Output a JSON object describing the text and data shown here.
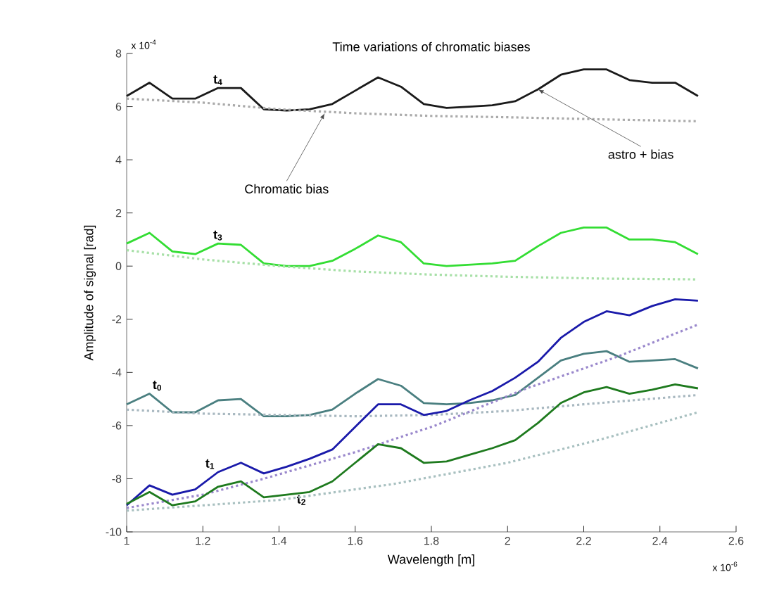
{
  "chart_data": {
    "type": "line",
    "title": "Time variations of  chromatic biases",
    "xlabel": "Wavelength [m]",
    "ylabel": "Amplitude of signal [rad]",
    "xlim": [
      1,
      2.6
    ],
    "xticks": [
      1,
      1.2,
      1.4,
      1.6,
      1.8,
      2,
      2.2,
      2.4,
      2.6
    ],
    "ylim": [
      -10,
      8
    ],
    "yticks": [
      -10,
      -8,
      -6,
      -4,
      -2,
      0,
      2,
      4,
      6,
      8
    ],
    "grid": false,
    "marker": "none",
    "line_style": "solid",
    "annotations": [
      {
        "text": "Chromatic bias",
        "x": 1.52,
        "y": 5.75
      },
      {
        "text": "astro + bias",
        "x": 2.08,
        "y": 6.65
      },
      "x 10$^{-4}$",
      "x 10$^{-6}$"
    ],
    "series": [
      {
        "name": "t$_{4}$",
        "color": "#1a1a1a",
        "x": [
          1.0,
          1.06,
          1.12,
          1.18,
          1.24,
          1.3,
          1.36,
          1.42,
          1.48,
          1.54,
          1.6,
          1.66,
          1.72,
          1.78,
          1.84,
          1.9,
          1.96,
          2.02,
          2.08,
          2.14,
          2.2,
          2.26,
          2.32,
          2.38,
          2.44,
          2.5
        ],
        "values": [
          6.4,
          6.9,
          6.3,
          6.3,
          6.7,
          6.7,
          5.9,
          5.85,
          5.9,
          6.1,
          6.6,
          7.1,
          6.75,
          6.1,
          5.95,
          6.0,
          6.05,
          6.2,
          6.65,
          7.2,
          7.4,
          7.4,
          7.0,
          6.9,
          6.9,
          6.4
        ]
      },
      {
        "color": "#aaaaaa",
        "line_style": "dotted",
        "x": [
          1.0,
          1.2,
          1.4,
          1.6,
          1.8,
          2.0,
          2.25,
          2.5
        ],
        "values": [
          6.3,
          6.15,
          5.9,
          5.75,
          5.65,
          5.6,
          5.52,
          5.45
        ]
      },
      {
        "name": "t$_{3}$",
        "color": "#33dd33",
        "x": [
          1.0,
          1.06,
          1.12,
          1.18,
          1.24,
          1.3,
          1.36,
          1.42,
          1.48,
          1.54,
          1.6,
          1.66,
          1.72,
          1.78,
          1.84,
          1.9,
          1.96,
          2.02,
          2.08,
          2.14,
          2.2,
          2.26,
          2.32,
          2.38,
          2.44,
          2.5
        ],
        "values": [
          0.85,
          1.25,
          0.55,
          0.45,
          0.85,
          0.8,
          0.1,
          0.0,
          0.0,
          0.2,
          0.65,
          1.15,
          0.9,
          0.1,
          0.0,
          0.05,
          0.1,
          0.2,
          0.75,
          1.25,
          1.45,
          1.45,
          1.0,
          1.0,
          0.9,
          0.45
        ]
      },
      {
        "color": "#a8e0a8",
        "line_style": "dotted",
        "x": [
          1.0,
          1.2,
          1.4,
          1.6,
          1.8,
          2.0,
          2.25,
          2.5
        ],
        "values": [
          0.6,
          0.25,
          0.0,
          -0.2,
          -0.32,
          -0.4,
          -0.47,
          -0.5
        ]
      },
      {
        "name": "t$_{0}$",
        "color": "#4a7f80",
        "x": [
          1.0,
          1.06,
          1.12,
          1.18,
          1.24,
          1.3,
          1.36,
          1.42,
          1.48,
          1.54,
          1.6,
          1.66,
          1.72,
          1.78,
          1.84,
          1.9,
          1.96,
          2.02,
          2.08,
          2.14,
          2.2,
          2.26,
          2.32,
          2.38,
          2.44,
          2.5
        ],
        "values": [
          -5.2,
          -4.8,
          -5.5,
          -5.5,
          -5.05,
          -5.0,
          -5.65,
          -5.65,
          -5.6,
          -5.4,
          -4.8,
          -4.25,
          -4.5,
          -5.15,
          -5.2,
          -5.15,
          -5.05,
          -4.85,
          -4.2,
          -3.55,
          -3.3,
          -3.2,
          -3.6,
          -3.55,
          -3.5,
          -3.85
        ]
      },
      {
        "color": "#a8b8c0",
        "line_style": "dotted",
        "x": [
          1.0,
          1.2,
          1.4,
          1.6,
          1.8,
          2.0,
          2.2,
          2.5
        ],
        "values": [
          -5.4,
          -5.55,
          -5.6,
          -5.65,
          -5.6,
          -5.45,
          -5.2,
          -4.85
        ]
      },
      {
        "name": "t$_{1}$",
        "color": "#1a1aaa",
        "x": [
          1.0,
          1.06,
          1.12,
          1.18,
          1.24,
          1.3,
          1.36,
          1.42,
          1.48,
          1.54,
          1.6,
          1.66,
          1.72,
          1.78,
          1.84,
          1.9,
          1.96,
          2.02,
          2.08,
          2.14,
          2.2,
          2.26,
          2.32,
          2.38,
          2.44,
          2.5
        ],
        "values": [
          -9.0,
          -8.25,
          -8.6,
          -8.4,
          -7.75,
          -7.4,
          -7.8,
          -7.55,
          -7.25,
          -6.9,
          -6.05,
          -5.2,
          -5.2,
          -5.6,
          -5.45,
          -5.05,
          -4.7,
          -4.2,
          -3.6,
          -2.7,
          -2.1,
          -1.7,
          -1.85,
          -1.5,
          -1.25,
          -1.3
        ]
      },
      {
        "color": "#9a88cc",
        "line_style": "dotted",
        "x": [
          1.0,
          1.2,
          1.36,
          1.6,
          1.81,
          2.05,
          2.29,
          2.5
        ],
        "values": [
          -9.1,
          -8.6,
          -8.0,
          -7.0,
          -6.0,
          -4.6,
          -3.4,
          -2.2
        ]
      },
      {
        "name": "t$_{2}$",
        "color": "#1e7a1e",
        "x": [
          1.0,
          1.06,
          1.12,
          1.18,
          1.24,
          1.3,
          1.36,
          1.42,
          1.48,
          1.54,
          1.6,
          1.66,
          1.72,
          1.78,
          1.84,
          1.9,
          1.96,
          2.02,
          2.08,
          2.14,
          2.2,
          2.26,
          2.32,
          2.38,
          2.44,
          2.5
        ],
        "values": [
          -8.95,
          -8.5,
          -9.0,
          -8.85,
          -8.3,
          -8.1,
          -8.7,
          -8.6,
          -8.5,
          -8.1,
          -7.4,
          -6.7,
          -6.85,
          -7.4,
          -7.35,
          -7.1,
          -6.85,
          -6.55,
          -5.9,
          -5.15,
          -4.75,
          -4.55,
          -4.8,
          -4.65,
          -4.45,
          -4.6
        ]
      },
      {
        "color": "#a8c0c0",
        "line_style": "dotted",
        "x": [
          1.0,
          1.2,
          1.4,
          1.7,
          2.0,
          2.25,
          2.5
        ],
        "values": [
          -9.2,
          -9.0,
          -8.8,
          -8.2,
          -7.4,
          -6.5,
          -5.5
        ]
      }
    ]
  }
}
